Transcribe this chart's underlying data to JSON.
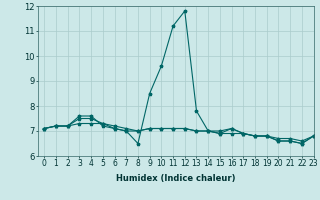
{
  "xlabel": "Humidex (Indice chaleur)",
  "ylabel": "",
  "background_color": "#cce8e8",
  "grid_color": "#aacccc",
  "line_color": "#006666",
  "xlim": [
    -0.5,
    23
  ],
  "ylim": [
    6,
    12
  ],
  "xtick_vals": [
    0,
    1,
    2,
    3,
    4,
    5,
    6,
    7,
    8,
    9,
    10,
    11,
    12,
    13,
    14,
    15,
    16,
    17,
    18,
    19,
    20,
    21,
    22,
    23
  ],
  "ytick_vals": [
    6,
    7,
    8,
    9,
    10,
    11,
    12
  ],
  "series": [
    [
      7.1,
      7.2,
      7.2,
      7.6,
      7.6,
      7.2,
      7.1,
      7.0,
      6.5,
      8.5,
      9.6,
      11.2,
      11.8,
      7.8,
      7.0,
      6.9,
      7.1,
      6.9,
      6.8,
      6.8,
      6.6,
      6.6,
      6.5,
      6.8
    ],
    [
      7.1,
      7.2,
      7.2,
      7.5,
      7.5,
      7.3,
      7.2,
      7.1,
      7.0,
      7.1,
      7.1,
      7.1,
      7.1,
      7.0,
      7.0,
      7.0,
      7.1,
      6.9,
      6.8,
      6.8,
      6.7,
      6.7,
      6.6,
      6.8
    ],
    [
      7.1,
      7.2,
      7.2,
      7.3,
      7.3,
      7.3,
      7.1,
      7.0,
      7.0,
      7.1,
      7.1,
      7.1,
      7.1,
      7.0,
      7.0,
      6.9,
      6.9,
      6.9,
      6.8,
      6.8,
      6.6,
      6.6,
      6.5,
      6.8
    ]
  ],
  "xlabel_fontsize": 6.0,
  "tick_fontsize": 5.5,
  "ytick_fontsize": 6.0,
  "linewidth": 0.8,
  "markersize": 2.5
}
